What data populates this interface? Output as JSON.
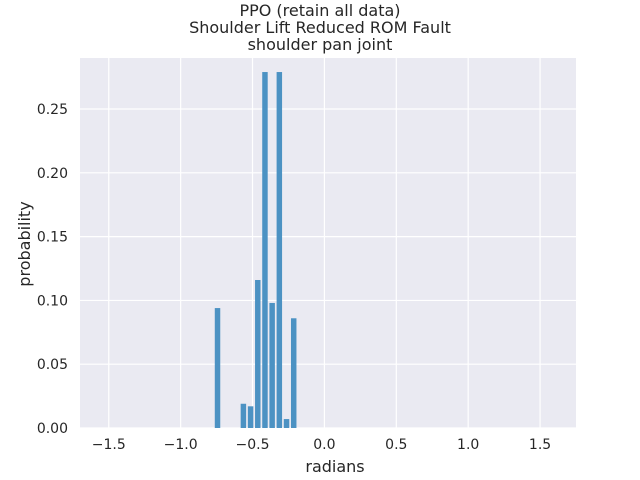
{
  "chart_data": {
    "type": "bar",
    "title_lines": [
      "PPO (retain all data)",
      "Shoulder Lift Reduced ROM Fault",
      "shoulder pan joint"
    ],
    "xlabel": "radians",
    "ylabel": "probability",
    "xlim": [
      -1.7,
      1.75
    ],
    "ylim": [
      0,
      0.29
    ],
    "grid": true,
    "bar_width": 0.045,
    "bar_color": "#4c92c3",
    "background": "#eaeaf2",
    "grid_color": "#ffffff",
    "x_ticks": [
      -1.5,
      -1.0,
      -0.5,
      0.0,
      0.5,
      1.0,
      1.5
    ],
    "x_tick_labels": [
      "−1.5",
      "−1.0",
      "−0.5",
      "0.0",
      "0.5",
      "1.0",
      "1.5"
    ],
    "y_ticks": [
      0.0,
      0.05,
      0.1,
      0.15,
      0.2,
      0.25
    ],
    "y_tick_labels": [
      "0.00",
      "0.05",
      "0.10",
      "0.15",
      "0.20",
      "0.25"
    ],
    "bars": [
      {
        "x": -0.74,
        "value": 0.094
      },
      {
        "x": -0.56,
        "value": 0.019
      },
      {
        "x": -0.51,
        "value": 0.017
      },
      {
        "x": -0.46,
        "value": 0.116
      },
      {
        "x": -0.41,
        "value": 0.279
      },
      {
        "x": -0.36,
        "value": 0.098
      },
      {
        "x": -0.31,
        "value": 0.279
      },
      {
        "x": -0.26,
        "value": 0.007
      },
      {
        "x": -0.21,
        "value": 0.086
      }
    ]
  }
}
